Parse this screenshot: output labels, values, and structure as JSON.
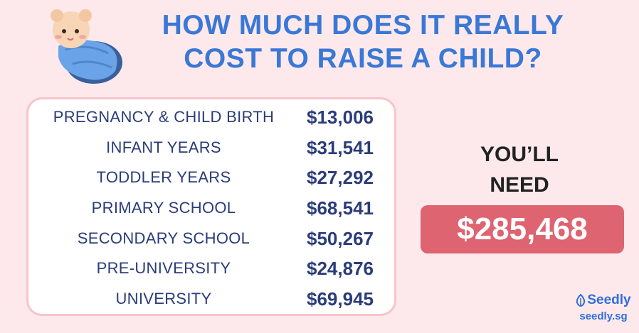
{
  "title": {
    "line1": "HOW MUCH DOES IT REALLY",
    "line2": "COST TO RAISE A CHILD?"
  },
  "costs": [
    {
      "label": "PREGNANCY & CHILD BIRTH",
      "value": "$13,006"
    },
    {
      "label": "INFANT YEARS",
      "value": "$31,541"
    },
    {
      "label": "TODDLER YEARS",
      "value": "$27,292"
    },
    {
      "label": "PRIMARY SCHOOL",
      "value": "$68,541"
    },
    {
      "label": "SECONDARY SCHOOL",
      "value": "$50,267"
    },
    {
      "label": "PRE-UNIVERSITY",
      "value": "$24,876"
    },
    {
      "label": "UNIVERSITY",
      "value": "$69,945"
    }
  ],
  "summary": {
    "line1": "YOU’LL",
    "line2": "NEED",
    "total": "$285,468"
  },
  "brand": {
    "name": "Seedly",
    "url": "seedly.sg",
    "icon": "seedly-leaf-icon"
  },
  "colors": {
    "background": "#fde9ec",
    "title": "#3a78d6",
    "table_text": "#2a3c7a",
    "total_badge": "#dd6470",
    "brand": "#2f6fdc"
  }
}
